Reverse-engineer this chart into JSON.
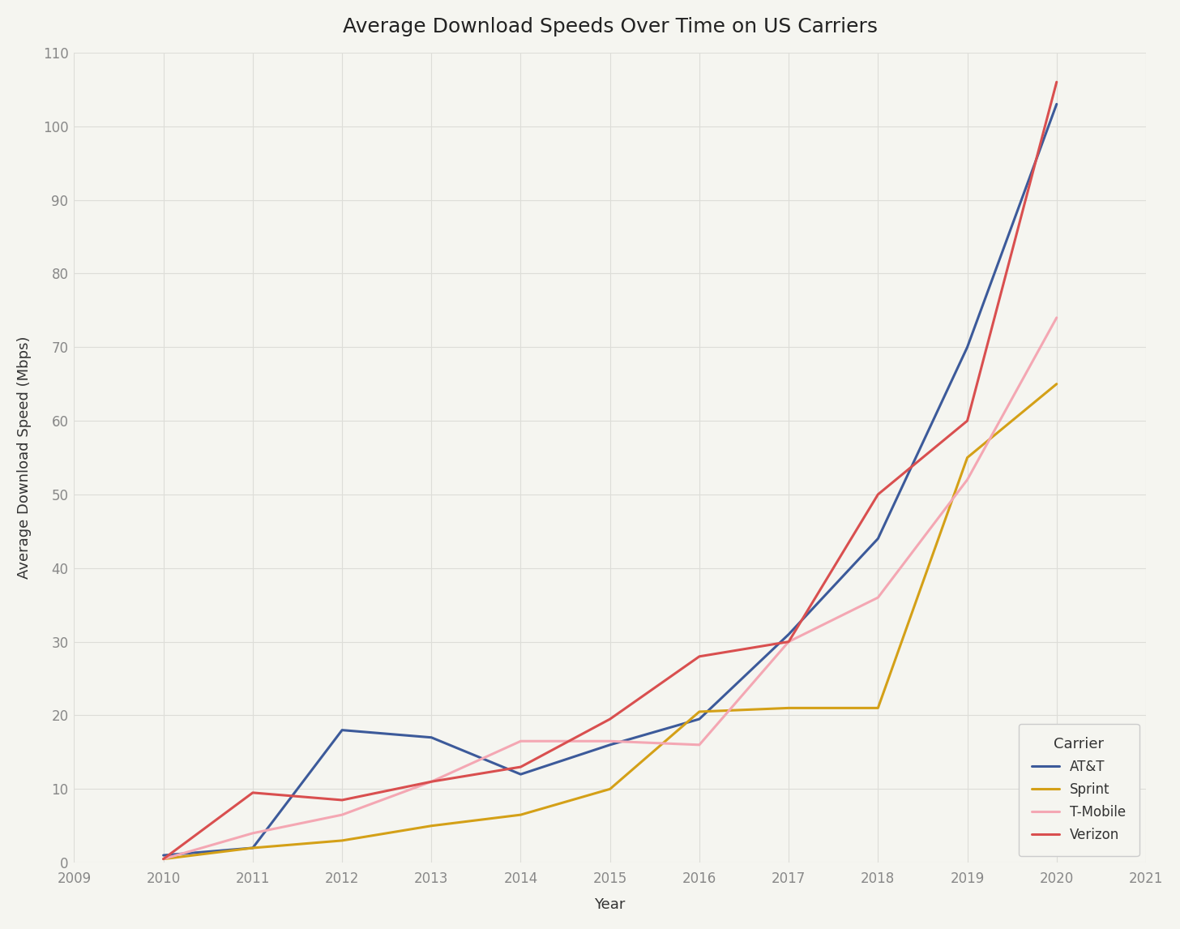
{
  "title": "Average Download Speeds Over Time on US Carriers",
  "xlabel": "Year",
  "ylabel": "Average Download Speed (Mbps)",
  "xlim": [
    2009,
    2021
  ],
  "ylim": [
    0,
    110
  ],
  "yticks": [
    0,
    10,
    20,
    30,
    40,
    50,
    60,
    70,
    80,
    90,
    100,
    110
  ],
  "xticks": [
    2009,
    2010,
    2011,
    2012,
    2013,
    2014,
    2015,
    2016,
    2017,
    2018,
    2019,
    2020,
    2021
  ],
  "carriers": {
    "AT&T": {
      "color": "#3C5A9A",
      "years": [
        2010,
        2011,
        2012,
        2013,
        2014,
        2015,
        2016,
        2017,
        2018,
        2019,
        2020
      ],
      "speeds": [
        1.0,
        2.0,
        18.0,
        17.0,
        12.0,
        16.0,
        19.5,
        31.0,
        44.0,
        70.0,
        103.0
      ]
    },
    "Sprint": {
      "color": "#D4A017",
      "years": [
        2010,
        2011,
        2012,
        2013,
        2014,
        2015,
        2016,
        2017,
        2018,
        2019,
        2020
      ],
      "speeds": [
        0.5,
        2.0,
        3.0,
        5.0,
        6.5,
        10.0,
        20.5,
        21.0,
        21.0,
        55.0,
        65.0
      ]
    },
    "T-Mobile": {
      "color": "#F4A7B3",
      "years": [
        2010,
        2011,
        2012,
        2013,
        2014,
        2015,
        2016,
        2017,
        2018,
        2019,
        2020
      ],
      "speeds": [
        0.5,
        4.0,
        6.5,
        11.0,
        16.5,
        16.5,
        16.0,
        30.0,
        36.0,
        52.0,
        74.0
      ]
    },
    "Verizon": {
      "color": "#D94F4F",
      "years": [
        2010,
        2011,
        2012,
        2013,
        2014,
        2015,
        2016,
        2017,
        2018,
        2019,
        2020
      ],
      "speeds": [
        0.5,
        9.5,
        8.5,
        11.0,
        13.0,
        19.5,
        28.0,
        30.0,
        50.0,
        60.0,
        106.0
      ]
    }
  },
  "legend_title": "Carrier",
  "bg_color": "#F5F5F0",
  "plot_bg_color": "#F5F5F0",
  "grid_color": "#DDDDD8",
  "title_fontsize": 18,
  "label_fontsize": 13,
  "tick_fontsize": 12,
  "legend_fontsize": 12,
  "line_width": 2.2
}
